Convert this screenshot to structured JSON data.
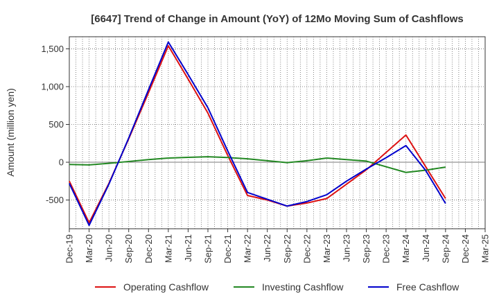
{
  "chart_data": {
    "type": "line",
    "title": "[6647]  Trend of Change in Amount (YoY) of 12Mo Moving Sum of Cashflows",
    "xlabel": "",
    "ylabel": "Amount (million yen)",
    "ylim": [
      -880,
      1660
    ],
    "yticks": [
      -500,
      0,
      500,
      1000,
      1500
    ],
    "ytick_labels": [
      "-500",
      "0",
      "500",
      "1,000",
      "1,500"
    ],
    "grid": true,
    "legend_position": "bottom",
    "categories": [
      "Dec-19",
      "Mar-20",
      "Jun-20",
      "Sep-20",
      "Dec-20",
      "Mar-21",
      "Jun-21",
      "Sep-21",
      "Dec-21",
      "Mar-22",
      "Jun-22",
      "Sep-22",
      "Dec-22",
      "Mar-23",
      "Jun-23",
      "Sep-23",
      "Dec-23",
      "Mar-24",
      "Jun-24",
      "Sep-24",
      "Dec-24",
      "Mar-25"
    ],
    "series": [
      {
        "name": "Operating Cashflow",
        "color": "#dd1111",
        "values": [
          -250,
          -800,
          -280,
          310,
          920,
          1540,
          1100,
          650,
          90,
          -440,
          -500,
          -580,
          -540,
          -480,
          -290,
          -100,
          130,
          360,
          -60,
          -480,
          null,
          null
        ]
      },
      {
        "name": "Investing Cashflow",
        "color": "#228822",
        "values": [
          -30,
          -35,
          -15,
          10,
          35,
          55,
          65,
          72,
          62,
          45,
          20,
          -5,
          20,
          55,
          35,
          15,
          -60,
          -135,
          -105,
          -65,
          null,
          null
        ]
      },
      {
        "name": "Free Cashflow",
        "color": "#0000cc",
        "values": [
          -280,
          -835,
          -290,
          320,
          960,
          1590,
          1160,
          720,
          150,
          -400,
          -490,
          -580,
          -520,
          -430,
          -250,
          -90,
          60,
          220,
          -110,
          -545,
          null,
          null
        ]
      }
    ]
  }
}
